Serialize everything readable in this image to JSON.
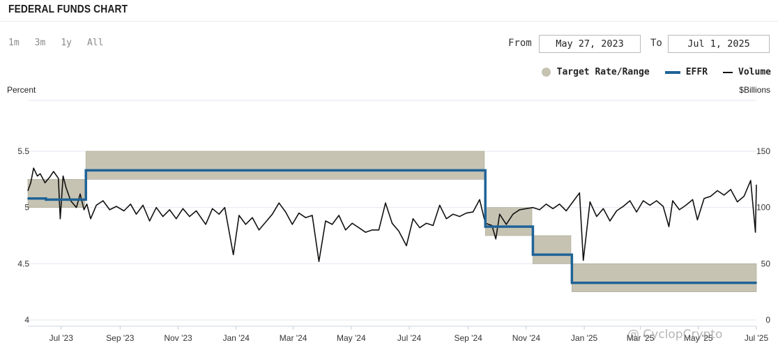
{
  "header": {
    "title": "FEDERAL FUNDS CHART"
  },
  "range_buttons": [
    {
      "label": "1m"
    },
    {
      "label": "3m"
    },
    {
      "label": "1y"
    },
    {
      "label": "All"
    }
  ],
  "date_range": {
    "from_label": "From",
    "from_value": "May 27, 2023",
    "to_label": "To",
    "to_value": "Jul 1, 2025"
  },
  "legend": {
    "items": [
      {
        "label": "Target Rate/Range",
        "color": "#c6c3b3"
      },
      {
        "label": "EFFR",
        "color": "#1f6396"
      },
      {
        "label": "Volume",
        "color": "#111111"
      }
    ]
  },
  "axes": {
    "left_title": "Percent",
    "right_title": "$Billions"
  },
  "watermark": "@ CyclopCrypto",
  "chart_data": {
    "type": "line",
    "title": "FEDERAL FUNDS CHART",
    "x_ticks": [
      "Jul '23",
      "Sep '23",
      "Nov '23",
      "Jan '24",
      "Mar '24",
      "May '24",
      "Jul '24",
      "Sep '24",
      "Nov '24",
      "Jan '25",
      "Mar '25",
      "May '25",
      "Jul '25"
    ],
    "x_tick_dates": [
      "2023-07-01",
      "2023-09-01",
      "2023-11-01",
      "2024-01-01",
      "2024-03-01",
      "2024-05-01",
      "2024-07-01",
      "2024-09-01",
      "2024-11-01",
      "2025-01-01",
      "2025-03-01",
      "2025-05-01",
      "2025-07-01"
    ],
    "xlim": [
      "2023-05-27",
      "2025-07-01"
    ],
    "y_left": {
      "label": "Percent",
      "range": [
        4,
        5.5
      ],
      "ticks": [
        "4",
        "4.5",
        "5",
        "5.5"
      ],
      "tick_values": [
        4,
        4.5,
        5,
        5.5
      ]
    },
    "y_right": {
      "label": "$Billions",
      "range": [
        0,
        150
      ],
      "ticks": [
        "0",
        "50",
        "100",
        "150"
      ],
      "tick_values": [
        0,
        50,
        100,
        150
      ]
    },
    "grid": true,
    "legend_position": "top-right",
    "series": [
      {
        "name": "Target Rate/Range",
        "kind": "band",
        "axis": "left",
        "color": "#c6c3b3",
        "segments": [
          {
            "start": "2023-05-27",
            "end": "2023-07-26",
            "low": 5.0,
            "high": 5.25
          },
          {
            "start": "2023-07-27",
            "end": "2024-09-18",
            "low": 5.25,
            "high": 5.5
          },
          {
            "start": "2024-09-19",
            "end": "2024-11-07",
            "low": 4.75,
            "high": 5.0
          },
          {
            "start": "2024-11-08",
            "end": "2024-12-18",
            "low": 4.5,
            "high": 4.75
          },
          {
            "start": "2024-12-19",
            "end": "2025-07-01",
            "low": 4.25,
            "high": 4.5
          }
        ]
      },
      {
        "name": "EFFR",
        "kind": "step",
        "axis": "left",
        "color": "#1f6396",
        "points": [
          {
            "x": "2023-05-27",
            "y": 5.08
          },
          {
            "x": "2023-06-15",
            "y": 5.07
          },
          {
            "x": "2023-07-27",
            "y": 5.33
          },
          {
            "x": "2024-09-19",
            "y": 4.83
          },
          {
            "x": "2024-11-08",
            "y": 4.58
          },
          {
            "x": "2024-12-19",
            "y": 4.33
          },
          {
            "x": "2025-07-01",
            "y": 4.33
          }
        ]
      },
      {
        "name": "Volume",
        "kind": "line",
        "axis": "right",
        "color": "#111111",
        "points": [
          {
            "x": "2023-05-27",
            "y": 115
          },
          {
            "x": "2023-05-30",
            "y": 122
          },
          {
            "x": "2023-06-02",
            "y": 135
          },
          {
            "x": "2023-06-06",
            "y": 128
          },
          {
            "x": "2023-06-09",
            "y": 130
          },
          {
            "x": "2023-06-14",
            "y": 122
          },
          {
            "x": "2023-06-19",
            "y": 127
          },
          {
            "x": "2023-06-23",
            "y": 132
          },
          {
            "x": "2023-06-28",
            "y": 126
          },
          {
            "x": "2023-06-30",
            "y": 90
          },
          {
            "x": "2023-07-03",
            "y": 128
          },
          {
            "x": "2023-07-06",
            "y": 118
          },
          {
            "x": "2023-07-11",
            "y": 106
          },
          {
            "x": "2023-07-17",
            "y": 100
          },
          {
            "x": "2023-07-21",
            "y": 112
          },
          {
            "x": "2023-07-25",
            "y": 98
          },
          {
            "x": "2023-07-28",
            "y": 103
          },
          {
            "x": "2023-08-01",
            "y": 90
          },
          {
            "x": "2023-08-07",
            "y": 102
          },
          {
            "x": "2023-08-14",
            "y": 106
          },
          {
            "x": "2023-08-21",
            "y": 98
          },
          {
            "x": "2023-08-28",
            "y": 101
          },
          {
            "x": "2023-09-05",
            "y": 97
          },
          {
            "x": "2023-09-12",
            "y": 103
          },
          {
            "x": "2023-09-18",
            "y": 94
          },
          {
            "x": "2023-09-25",
            "y": 102
          },
          {
            "x": "2023-10-02",
            "y": 88
          },
          {
            "x": "2023-10-09",
            "y": 100
          },
          {
            "x": "2023-10-16",
            "y": 92
          },
          {
            "x": "2023-10-23",
            "y": 98
          },
          {
            "x": "2023-10-30",
            "y": 90
          },
          {
            "x": "2023-11-06",
            "y": 99
          },
          {
            "x": "2023-11-13",
            "y": 92
          },
          {
            "x": "2023-11-20",
            "y": 97
          },
          {
            "x": "2023-11-30",
            "y": 85
          },
          {
            "x": "2023-12-07",
            "y": 99
          },
          {
            "x": "2023-12-14",
            "y": 94
          },
          {
            "x": "2023-12-20",
            "y": 100
          },
          {
            "x": "2023-12-29",
            "y": 58
          },
          {
            "x": "2024-01-04",
            "y": 93
          },
          {
            "x": "2024-01-11",
            "y": 85
          },
          {
            "x": "2024-01-18",
            "y": 91
          },
          {
            "x": "2024-01-25",
            "y": 80
          },
          {
            "x": "2024-02-01",
            "y": 87
          },
          {
            "x": "2024-02-08",
            "y": 94
          },
          {
            "x": "2024-02-15",
            "y": 104
          },
          {
            "x": "2024-02-22",
            "y": 96
          },
          {
            "x": "2024-02-29",
            "y": 85
          },
          {
            "x": "2024-03-07",
            "y": 95
          },
          {
            "x": "2024-03-14",
            "y": 91
          },
          {
            "x": "2024-03-21",
            "y": 93
          },
          {
            "x": "2024-03-28",
            "y": 52
          },
          {
            "x": "2024-04-04",
            "y": 88
          },
          {
            "x": "2024-04-11",
            "y": 85
          },
          {
            "x": "2024-04-18",
            "y": 93
          },
          {
            "x": "2024-04-25",
            "y": 80
          },
          {
            "x": "2024-05-02",
            "y": 86
          },
          {
            "x": "2024-05-09",
            "y": 82
          },
          {
            "x": "2024-05-16",
            "y": 78
          },
          {
            "x": "2024-05-23",
            "y": 80
          },
          {
            "x": "2024-05-30",
            "y": 80
          },
          {
            "x": "2024-06-06",
            "y": 104
          },
          {
            "x": "2024-06-13",
            "y": 86
          },
          {
            "x": "2024-06-20",
            "y": 79
          },
          {
            "x": "2024-06-28",
            "y": 66
          },
          {
            "x": "2024-07-05",
            "y": 90
          },
          {
            "x": "2024-07-12",
            "y": 82
          },
          {
            "x": "2024-07-19",
            "y": 86
          },
          {
            "x": "2024-07-26",
            "y": 84
          },
          {
            "x": "2024-08-02",
            "y": 102
          },
          {
            "x": "2024-08-09",
            "y": 90
          },
          {
            "x": "2024-08-16",
            "y": 94
          },
          {
            "x": "2024-08-23",
            "y": 92
          },
          {
            "x": "2024-08-30",
            "y": 95
          },
          {
            "x": "2024-09-06",
            "y": 96
          },
          {
            "x": "2024-09-13",
            "y": 107
          },
          {
            "x": "2024-09-19",
            "y": 86
          },
          {
            "x": "2024-09-26",
            "y": 84
          },
          {
            "x": "2024-09-30",
            "y": 72
          },
          {
            "x": "2024-10-04",
            "y": 94
          },
          {
            "x": "2024-10-11",
            "y": 85
          },
          {
            "x": "2024-10-18",
            "y": 94
          },
          {
            "x": "2024-10-25",
            "y": 98
          },
          {
            "x": "2024-11-01",
            "y": 99
          },
          {
            "x": "2024-11-08",
            "y": 100
          },
          {
            "x": "2024-11-15",
            "y": 98
          },
          {
            "x": "2024-11-22",
            "y": 103
          },
          {
            "x": "2024-11-29",
            "y": 99
          },
          {
            "x": "2024-12-06",
            "y": 103
          },
          {
            "x": "2024-12-13",
            "y": 97
          },
          {
            "x": "2024-12-20",
            "y": 105
          },
          {
            "x": "2024-12-27",
            "y": 113
          },
          {
            "x": "2024-12-31",
            "y": 53
          },
          {
            "x": "2025-01-07",
            "y": 105
          },
          {
            "x": "2025-01-14",
            "y": 92
          },
          {
            "x": "2025-01-21",
            "y": 99
          },
          {
            "x": "2025-01-28",
            "y": 88
          },
          {
            "x": "2025-02-04",
            "y": 97
          },
          {
            "x": "2025-02-11",
            "y": 101
          },
          {
            "x": "2025-02-18",
            "y": 106
          },
          {
            "x": "2025-02-25",
            "y": 96
          },
          {
            "x": "2025-03-04",
            "y": 106
          },
          {
            "x": "2025-03-11",
            "y": 102
          },
          {
            "x": "2025-03-18",
            "y": 106
          },
          {
            "x": "2025-03-25",
            "y": 101
          },
          {
            "x": "2025-03-31",
            "y": 83
          },
          {
            "x": "2025-04-04",
            "y": 106
          },
          {
            "x": "2025-04-11",
            "y": 98
          },
          {
            "x": "2025-04-18",
            "y": 102
          },
          {
            "x": "2025-04-25",
            "y": 107
          },
          {
            "x": "2025-04-30",
            "y": 89
          },
          {
            "x": "2025-05-07",
            "y": 108
          },
          {
            "x": "2025-05-14",
            "y": 110
          },
          {
            "x": "2025-05-21",
            "y": 115
          },
          {
            "x": "2025-05-28",
            "y": 111
          },
          {
            "x": "2025-06-04",
            "y": 116
          },
          {
            "x": "2025-06-11",
            "y": 105
          },
          {
            "x": "2025-06-18",
            "y": 110
          },
          {
            "x": "2025-06-25",
            "y": 124
          },
          {
            "x": "2025-06-30",
            "y": 78
          },
          {
            "x": "2025-07-01",
            "y": 120
          }
        ]
      }
    ]
  }
}
